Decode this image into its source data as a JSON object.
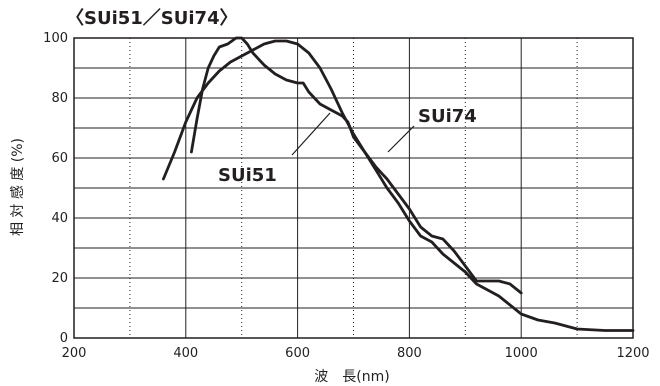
{
  "chart_data": {
    "type": "line",
    "title": "〈SUi51／SUi74〉",
    "xlabel": "波　長(nm)",
    "ylabel": "相 対 感 度 (%)",
    "xlim": [
      200,
      1200
    ],
    "ylim": [
      0,
      100
    ],
    "x_ticks": [
      200,
      400,
      600,
      800,
      1000,
      1200
    ],
    "y_ticks": [
      0,
      20,
      40,
      60,
      80,
      100
    ],
    "grid": true,
    "series": [
      {
        "name": "SUi51",
        "points": [
          [
            410,
            62
          ],
          [
            420,
            73
          ],
          [
            430,
            83
          ],
          [
            440,
            90
          ],
          [
            450,
            94
          ],
          [
            460,
            97
          ],
          [
            475,
            98
          ],
          [
            490,
            100
          ],
          [
            500,
            100
          ],
          [
            510,
            98
          ],
          [
            520,
            95
          ],
          [
            540,
            91
          ],
          [
            560,
            88
          ],
          [
            580,
            86
          ],
          [
            600,
            85
          ],
          [
            610,
            85
          ],
          [
            620,
            82
          ],
          [
            640,
            78
          ],
          [
            660,
            76
          ],
          [
            680,
            74
          ],
          [
            690,
            72
          ],
          [
            700,
            67
          ],
          [
            720,
            62
          ],
          [
            740,
            57
          ],
          [
            760,
            53
          ],
          [
            780,
            48
          ],
          [
            800,
            43
          ],
          [
            820,
            37
          ],
          [
            840,
            34
          ],
          [
            860,
            33
          ],
          [
            880,
            29
          ],
          [
            900,
            24
          ],
          [
            920,
            19
          ],
          [
            940,
            19
          ],
          [
            960,
            19
          ],
          [
            980,
            18
          ],
          [
            1000,
            15
          ]
        ]
      },
      {
        "name": "SUi74",
        "points": [
          [
            360,
            53
          ],
          [
            380,
            62
          ],
          [
            400,
            72
          ],
          [
            420,
            80
          ],
          [
            440,
            85
          ],
          [
            460,
            89
          ],
          [
            480,
            92
          ],
          [
            500,
            94
          ],
          [
            520,
            96
          ],
          [
            540,
            98
          ],
          [
            560,
            99
          ],
          [
            580,
            99
          ],
          [
            600,
            98
          ],
          [
            620,
            95
          ],
          [
            640,
            90
          ],
          [
            660,
            83
          ],
          [
            680,
            75
          ],
          [
            700,
            68
          ],
          [
            720,
            62
          ],
          [
            740,
            56
          ],
          [
            760,
            50
          ],
          [
            780,
            45
          ],
          [
            800,
            39
          ],
          [
            820,
            34
          ],
          [
            840,
            32
          ],
          [
            860,
            28
          ],
          [
            880,
            25
          ],
          [
            900,
            22
          ],
          [
            920,
            18
          ],
          [
            940,
            16
          ],
          [
            960,
            14
          ],
          [
            980,
            11
          ],
          [
            1000,
            8
          ],
          [
            1030,
            6
          ],
          [
            1060,
            5
          ],
          [
            1100,
            3
          ],
          [
            1150,
            2.5
          ],
          [
            1200,
            2.5
          ]
        ]
      }
    ],
    "annotations": [
      {
        "text": "SUi51",
        "series": "SUi51"
      },
      {
        "text": "SUi74",
        "series": "SUi74"
      }
    ]
  }
}
